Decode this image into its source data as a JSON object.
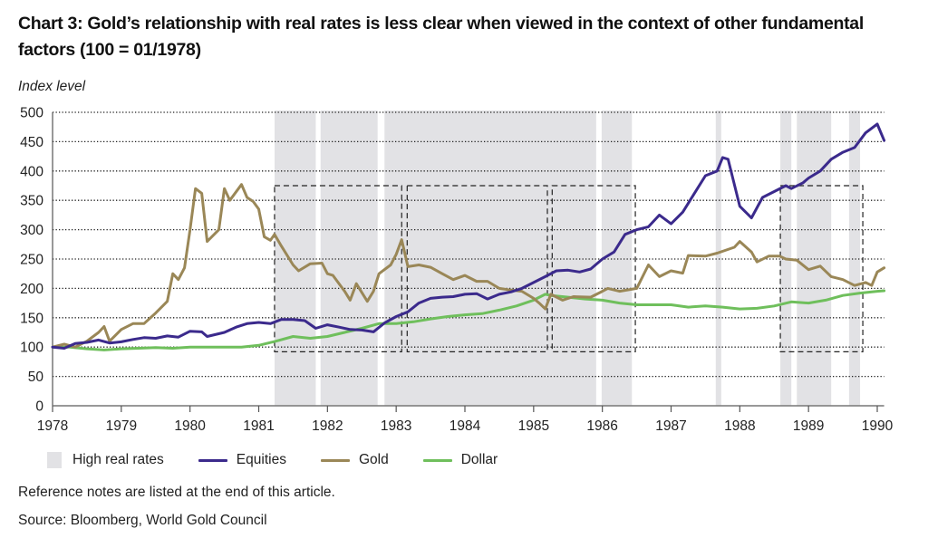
{
  "title": "Chart 3: Gold’s relationship with real rates is less clear when viewed in the context of other fundamental factors (100 = 01/1978)",
  "notes": {
    "reference": "Reference notes are listed at the end of this article.",
    "source": "Source: Bloomberg, World Gold Council"
  },
  "chart_data": {
    "type": "line",
    "title": "Chart 3: Gold’s relationship with real rates is less clear when viewed in the context of other fundamental factors (100 = 01/1978)",
    "xlabel": "",
    "ylabel": "Index level",
    "xlim": [
      1978,
      1990.1
    ],
    "ylim": [
      0,
      500
    ],
    "x_ticks": [
      1978,
      1979,
      1980,
      1981,
      1982,
      1983,
      1984,
      1985,
      1986,
      1987,
      1988,
      1989,
      1990
    ],
    "y_ticks": [
      0,
      50,
      100,
      150,
      200,
      250,
      300,
      350,
      400,
      450,
      500
    ],
    "grid": "horizontal-dotted",
    "legend_position": "bottom-left",
    "legend": [
      {
        "label": "High real rates",
        "kind": "area",
        "color": "#e2e2e5"
      },
      {
        "label": "Equities",
        "kind": "line",
        "color": "#3b2a8c"
      },
      {
        "label": "Gold",
        "kind": "line",
        "color": "#9a8757"
      },
      {
        "label": "Dollar",
        "kind": "line",
        "color": "#6fbf5c"
      }
    ],
    "shaded_periods": [
      [
        1981.23,
        1981.83
      ],
      [
        1981.9,
        1982.73
      ],
      [
        1982.83,
        1985.91
      ],
      [
        1985.99,
        1986.43
      ],
      [
        1987.65,
        1987.73
      ],
      [
        1988.59,
        1988.75
      ],
      [
        1988.83,
        1989.33
      ],
      [
        1989.59,
        1989.75
      ]
    ],
    "highlight_boxes": [
      {
        "x": [
          1981.23,
          1983.08
        ],
        "y": [
          92,
          375
        ]
      },
      {
        "x": [
          1983.16,
          1985.2
        ],
        "y": [
          92,
          375
        ]
      },
      {
        "x": [
          1985.27,
          1986.48
        ],
        "y": [
          92,
          375
        ]
      },
      {
        "x": [
          1988.59,
          1989.79
        ],
        "y": [
          92,
          375
        ]
      }
    ],
    "series": [
      {
        "name": "Equities",
        "color": "#3b2a8c",
        "x": [
          1978.0,
          1978.17,
          1978.33,
          1978.5,
          1978.67,
          1978.83,
          1979.0,
          1979.17,
          1979.33,
          1979.5,
          1979.67,
          1979.83,
          1980.0,
          1980.17,
          1980.25,
          1980.5,
          1980.67,
          1980.83,
          1981.0,
          1981.17,
          1981.33,
          1981.5,
          1981.67,
          1981.83,
          1982.0,
          1982.17,
          1982.33,
          1982.5,
          1982.67,
          1982.83,
          1983.0,
          1983.17,
          1983.33,
          1983.5,
          1983.67,
          1983.83,
          1984.0,
          1984.17,
          1984.33,
          1984.5,
          1984.67,
          1984.83,
          1985.0,
          1985.17,
          1985.33,
          1985.5,
          1985.67,
          1985.83,
          1986.0,
          1986.17,
          1986.33,
          1986.5,
          1986.67,
          1986.83,
          1987.0,
          1987.17,
          1987.33,
          1987.5,
          1987.67,
          1987.75,
          1987.83,
          1988.0,
          1988.17,
          1988.33,
          1988.5,
          1988.67,
          1988.75,
          1988.92,
          1989.0,
          1989.17,
          1989.33,
          1989.5,
          1989.67,
          1989.83,
          1990.0,
          1990.1
        ],
        "values": [
          100,
          98,
          106,
          108,
          112,
          107,
          109,
          113,
          116,
          115,
          119,
          117,
          127,
          126,
          118,
          125,
          134,
          140,
          142,
          140,
          147,
          147,
          145,
          132,
          138,
          134,
          130,
          129,
          126,
          141,
          152,
          160,
          175,
          183,
          185,
          186,
          190,
          191,
          182,
          190,
          194,
          200,
          210,
          220,
          230,
          231,
          228,
          233,
          250,
          262,
          292,
          300,
          305,
          325,
          310,
          330,
          360,
          392,
          400,
          423,
          420,
          340,
          320,
          355,
          365,
          375,
          370,
          380,
          388,
          400,
          420,
          432,
          440,
          465,
          480,
          452
        ]
      },
      {
        "name": "Gold",
        "color": "#9a8757",
        "x": [
          1978.0,
          1978.17,
          1978.33,
          1978.5,
          1978.67,
          1978.75,
          1978.83,
          1979.0,
          1979.17,
          1979.33,
          1979.5,
          1979.67,
          1979.75,
          1979.83,
          1979.92,
          1980.0,
          1980.08,
          1980.17,
          1980.25,
          1980.42,
          1980.5,
          1980.58,
          1980.75,
          1980.83,
          1980.92,
          1981.0,
          1981.08,
          1981.17,
          1981.23,
          1981.33,
          1981.5,
          1981.58,
          1981.75,
          1981.92,
          1982.0,
          1982.08,
          1982.25,
          1982.33,
          1982.42,
          1982.58,
          1982.67,
          1982.75,
          1982.92,
          1983.0,
          1983.08,
          1983.17,
          1983.33,
          1983.5,
          1983.67,
          1983.83,
          1984.0,
          1984.17,
          1984.33,
          1984.5,
          1984.67,
          1984.83,
          1985.0,
          1985.08,
          1985.17,
          1985.25,
          1985.42,
          1985.58,
          1985.83,
          1986.0,
          1986.08,
          1986.25,
          1986.5,
          1986.67,
          1986.83,
          1987.0,
          1987.17,
          1987.25,
          1987.5,
          1987.67,
          1987.92,
          1988.0,
          1988.17,
          1988.25,
          1988.42,
          1988.58,
          1988.67,
          1988.83,
          1989.0,
          1989.17,
          1989.33,
          1989.5,
          1989.67,
          1989.83,
          1989.92,
          1990.0,
          1990.1
        ],
        "values": [
          100,
          105,
          100,
          110,
          125,
          135,
          110,
          130,
          140,
          140,
          158,
          178,
          225,
          215,
          235,
          300,
          370,
          362,
          280,
          300,
          370,
          350,
          377,
          355,
          348,
          335,
          288,
          282,
          292,
          272,
          240,
          230,
          242,
          243,
          225,
          222,
          195,
          180,
          208,
          178,
          195,
          225,
          240,
          258,
          283,
          237,
          240,
          236,
          225,
          215,
          222,
          212,
          212,
          200,
          197,
          195,
          183,
          175,
          165,
          190,
          180,
          186,
          185,
          195,
          200,
          195,
          200,
          240,
          220,
          230,
          226,
          256,
          255,
          260,
          270,
          280,
          262,
          245,
          255,
          255,
          250,
          248,
          232,
          238,
          220,
          215,
          205,
          210,
          205,
          228,
          235
        ]
      },
      {
        "name": "Dollar",
        "color": "#6fbf5c",
        "x": [
          1978.0,
          1978.25,
          1978.5,
          1978.75,
          1979.0,
          1979.25,
          1979.5,
          1979.75,
          1980.0,
          1980.25,
          1980.5,
          1980.75,
          1981.0,
          1981.25,
          1981.5,
          1981.75,
          1982.0,
          1982.25,
          1982.5,
          1982.75,
          1983.0,
          1983.25,
          1983.5,
          1983.75,
          1984.0,
          1984.25,
          1984.5,
          1984.75,
          1985.0,
          1985.17,
          1985.25,
          1985.5,
          1985.75,
          1986.0,
          1986.25,
          1986.5,
          1986.75,
          1987.0,
          1987.25,
          1987.5,
          1987.75,
          1988.0,
          1988.25,
          1988.5,
          1988.75,
          1989.0,
          1989.25,
          1989.5,
          1989.75,
          1990.0,
          1990.1
        ],
        "values": [
          100,
          100,
          97,
          95,
          97,
          98,
          99,
          98,
          100,
          100,
          100,
          100,
          103,
          110,
          118,
          115,
          118,
          125,
          132,
          140,
          140,
          143,
          148,
          152,
          155,
          157,
          163,
          170,
          180,
          190,
          188,
          185,
          182,
          180,
          175,
          172,
          172,
          172,
          168,
          170,
          168,
          165,
          166,
          170,
          177,
          175,
          180,
          188,
          192,
          195,
          196
        ]
      }
    ]
  }
}
